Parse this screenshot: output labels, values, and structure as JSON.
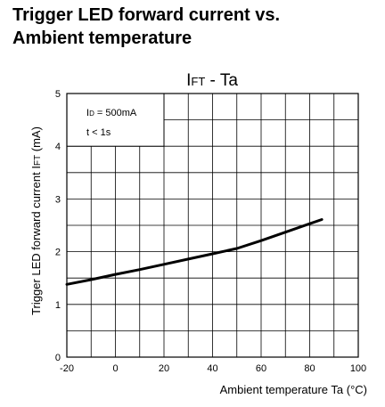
{
  "heading": {
    "line1": "Trigger LED forward current vs.",
    "line2": "Ambient temperature"
  },
  "chart_data": {
    "type": "line",
    "title": {
      "main": "I",
      "sub": "FT",
      "rest": " - Ta"
    },
    "ylabel": {
      "main": "Trigger LED forward current I",
      "sub": "FT",
      "unit": " (mA)"
    },
    "xlabel": "Ambient temperature Ta (°C)",
    "xlim": [
      -20,
      100
    ],
    "ylim": [
      0,
      5
    ],
    "x_ticks": [
      "-20",
      "0",
      "20",
      "40",
      "60",
      "80",
      "100"
    ],
    "y_ticks": [
      "0",
      "1",
      "2",
      "3",
      "4",
      "5"
    ],
    "grid": true,
    "conditions": {
      "line1": {
        "main": "I",
        "sub": "D",
        "rest": " = 500mA"
      },
      "line2": "t < 1s"
    },
    "series": [
      {
        "x": [
          -20,
          -10,
          0,
          10,
          20,
          30,
          40,
          50,
          60,
          70,
          80,
          85
        ],
        "y": [
          1.38,
          1.47,
          1.57,
          1.66,
          1.76,
          1.86,
          1.96,
          2.06,
          2.21,
          2.37,
          2.53,
          2.61
        ]
      }
    ],
    "colors": {
      "line": "#000000",
      "grid": "#000000"
    }
  }
}
